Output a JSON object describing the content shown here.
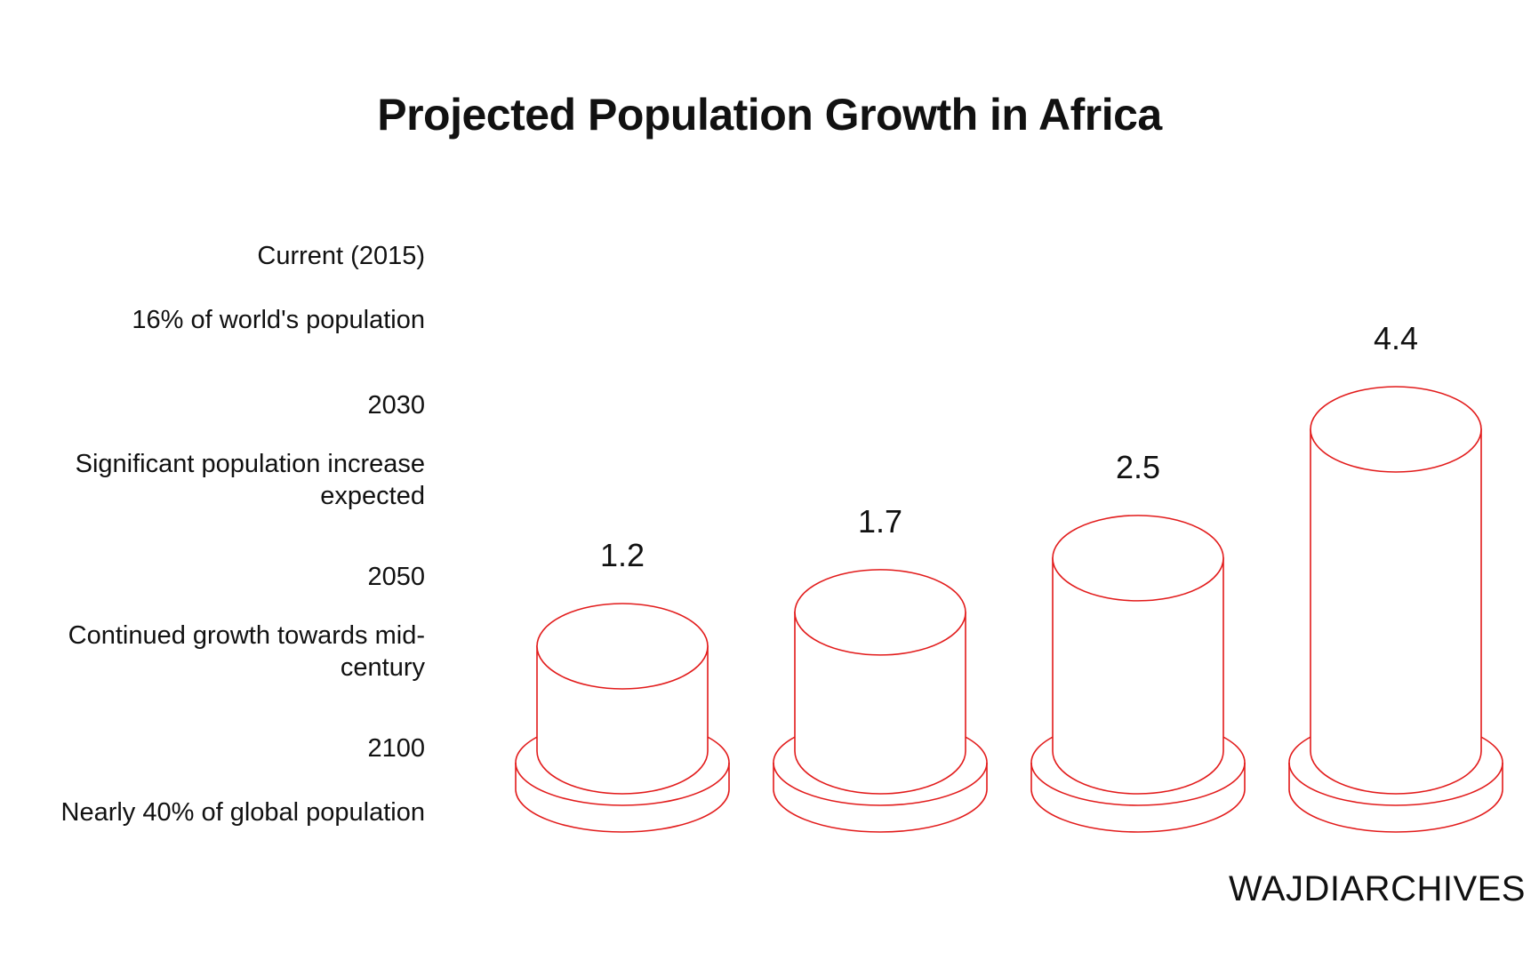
{
  "chart_data": {
    "type": "bar",
    "title": "Projected Population Growth in Africa",
    "categories": [
      "Current (2015)",
      "2030",
      "2050",
      "2100"
    ],
    "values": [
      1.2,
      1.7,
      2.5,
      4.4
    ],
    "value_labels": [
      "1.2",
      "1.7",
      "2.5",
      "4.4"
    ],
    "descriptions": [
      "16% of world's population",
      "Significant population increase expected",
      "Continued growth towards mid-century",
      "Nearly 40% of global population"
    ],
    "ylim": [
      0,
      4.4
    ],
    "xlabel": "",
    "ylabel": "",
    "legend_position": "left",
    "grid": false
  },
  "watermark": "WAJDIARCHIVES",
  "colors": {
    "bar_stroke": "#e21b1b",
    "text": "#111111",
    "background": "#ffffff"
  }
}
